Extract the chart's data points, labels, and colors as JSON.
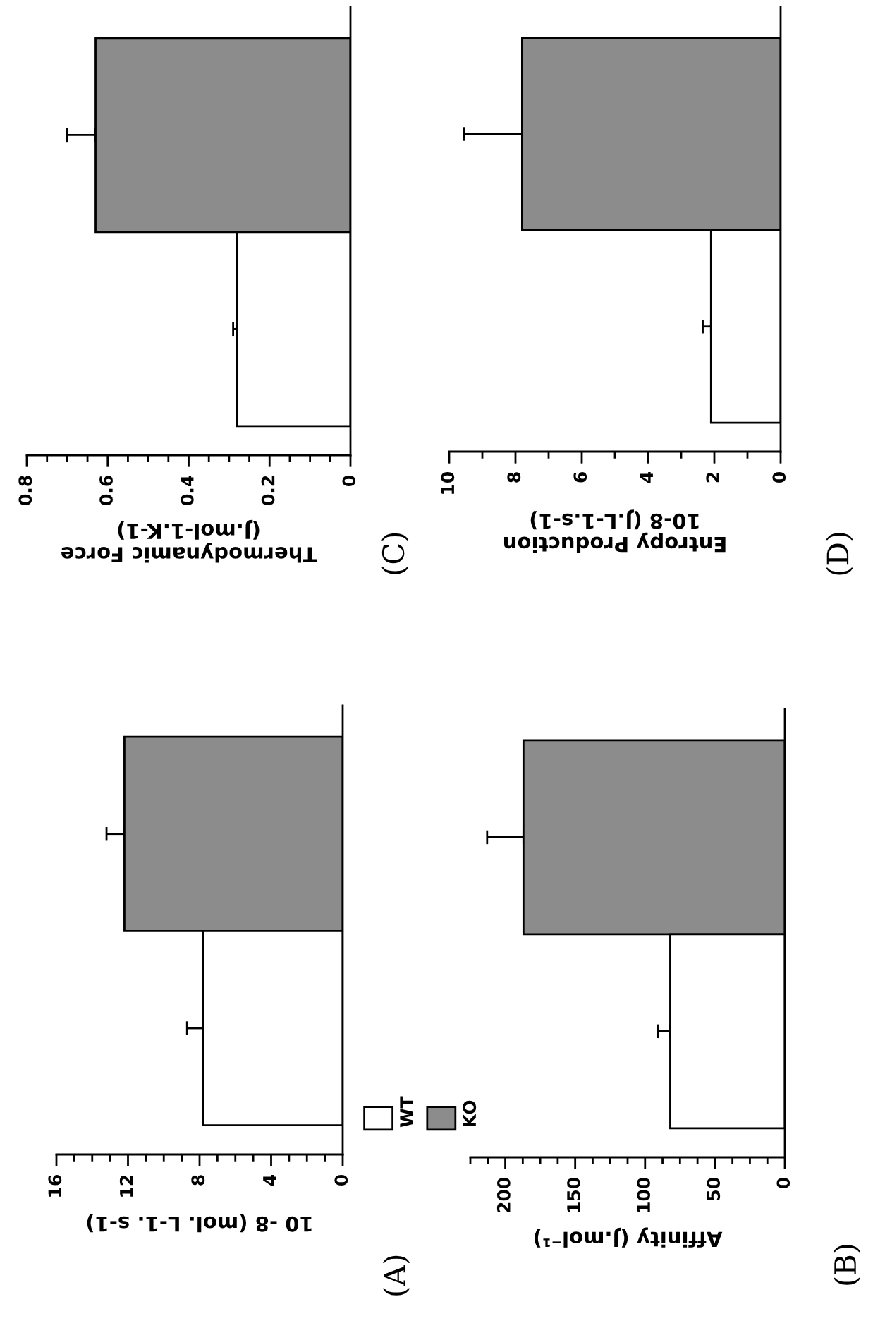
{
  "chart_data": [
    {
      "type": "bar",
      "orientation": "horizontal",
      "categories": [
        null,
        null
      ],
      "xlabel": "Thermodynamic Force\n(J.mol-1.K-1)",
      "series": [
        {
          "color": "#8c8c8c",
          "values": [
            0.63,
            null
          ],
          "errors": [
            [
              0.63,
              0.7
            ],
            null
          ]
        },
        {
          "color": "#ffffff",
          "values": [
            null,
            0.28
          ],
          "errors": [
            null,
            [
              0.28,
              0.29
            ]
          ]
        }
      ],
      "xlim": [
        0.8,
        0
      ],
      "xticks": [
        0.8,
        {
          "value": 0.75,
          "label": null
        },
        {
          "value": 0.7,
          "label": null
        },
        {
          "value": 0.65,
          "label": null
        },
        0.6,
        {
          "value": 0.55,
          "label": null
        },
        {
          "value": 0.5,
          "label": null
        },
        {
          "value": 0.45,
          "label": null
        },
        0.4,
        {
          "value": 0.35,
          "label": null
        },
        {
          "value": 0.3,
          "label": null
        },
        {
          "value": 0.25,
          "label": null
        },
        0.2,
        {
          "value": 0.15,
          "label": null
        },
        {
          "value": 0.1,
          "label": null
        },
        {
          "value": 0.05,
          "label": null
        },
        0
      ],
      "annotations": [
        "(C)"
      ],
      "grid": false
    },
    {
      "type": "bar",
      "orientation": "horizontal",
      "categories": [
        null,
        null
      ],
      "xlabel": "Entropy Production\n10-8 (J.L-1.s-1)",
      "series": [
        {
          "color": "#8c8c8c",
          "values": [
            7.8,
            null
          ],
          "errors": [
            [
              7.8,
              9.55
            ],
            null
          ]
        },
        {
          "color": "#ffffff",
          "values": [
            null,
            2.1
          ],
          "errors": [
            null,
            [
              2.1,
              2.35
            ]
          ]
        }
      ],
      "xlim": [
        10,
        0
      ],
      "xticks": [
        10,
        {
          "value": 9,
          "label": null
        },
        8,
        {
          "value": 7,
          "label": null
        },
        6,
        {
          "value": 5,
          "label": null
        },
        4,
        {
          "value": 3,
          "label": null
        },
        2,
        {
          "value": 1,
          "label": null
        },
        0
      ],
      "annotations": [
        "(D)"
      ],
      "grid": false
    },
    {
      "type": "bar",
      "orientation": "horizontal",
      "categories": [
        null,
        null
      ],
      "xlabel": "10 -8 (mol. L-1. s-1)",
      "series": [
        {
          "name": "KO",
          "color": "#8c8c8c",
          "values": [
            12.2,
            null
          ],
          "errors": [
            [
              12.2,
              13.2
            ],
            null
          ]
        },
        {
          "name": "WT",
          "color": "#ffffff",
          "values": [
            null,
            7.8
          ],
          "errors": [
            null,
            [
              7.8,
              8.7
            ]
          ]
        }
      ],
      "xlim": [
        16,
        0
      ],
      "xticks": [
        16,
        {
          "value": 15,
          "label": null
        },
        {
          "value": 14,
          "label": null
        },
        {
          "value": 13,
          "label": null
        },
        12,
        {
          "value": 11,
          "label": null
        },
        {
          "value": 10,
          "label": null
        },
        {
          "value": 9,
          "label": null
        },
        8,
        {
          "value": 7,
          "label": null
        },
        {
          "value": 6,
          "label": null
        },
        {
          "value": 5,
          "label": null
        },
        4,
        {
          "value": 3,
          "label": null
        },
        {
          "value": 2,
          "label": null
        },
        {
          "value": 1,
          "label": null
        },
        0
      ],
      "annotations": [
        "(A)"
      ],
      "legend": "right",
      "grid": false
    },
    {
      "type": "bar",
      "orientation": "horizontal",
      "categories": [
        null,
        null
      ],
      "xlabel": "Affinity (J.mol⁻¹)",
      "series": [
        {
          "color": "#8c8c8c",
          "values": [
            187,
            null
          ],
          "errors": [
            [
              187,
              213
            ],
            null
          ]
        },
        {
          "color": "#ffffff",
          "values": [
            null,
            82
          ],
          "errors": [
            null,
            [
              82,
              91
            ]
          ]
        }
      ],
      "xlim": [
        225,
        0
      ],
      "xticks": [
        {
          "value": 225,
          "label": null
        },
        {
          "value": 212.5,
          "label": null
        },
        200,
        {
          "value": 187.5,
          "label": null
        },
        {
          "value": 175,
          "label": null
        },
        {
          "value": 162.5,
          "label": null
        },
        150,
        {
          "value": 137.5,
          "label": null
        },
        {
          "value": 125,
          "label": null
        },
        {
          "value": 112.5,
          "label": null
        },
        100,
        {
          "value": 87.5,
          "label": null
        },
        {
          "value": 75,
          "label": null
        },
        {
          "value": 62.5,
          "label": null
        },
        50,
        {
          "value": 37.5,
          "label": null
        },
        {
          "value": 25,
          "label": null
        },
        {
          "value": 12.5,
          "label": null
        },
        0
      ],
      "annotations": [
        "(B)"
      ],
      "grid": false
    }
  ]
}
